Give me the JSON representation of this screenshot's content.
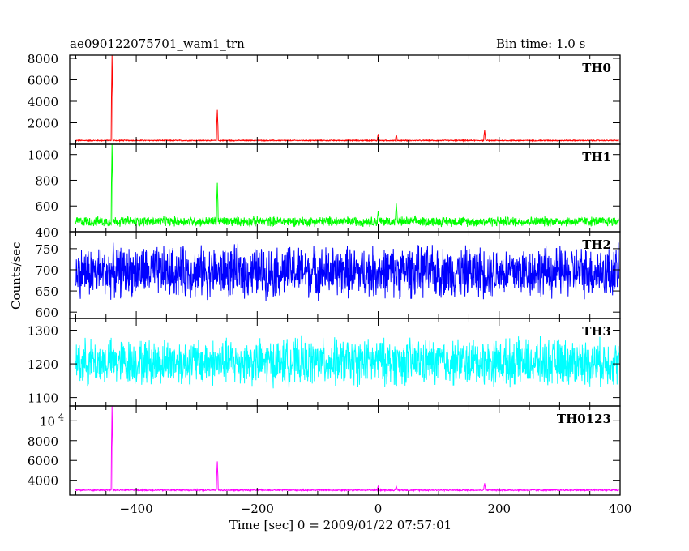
{
  "header": {
    "title": "ae090122075701_wam1_trn",
    "bin_time": "Bin time: 1.0 s"
  },
  "axes": {
    "xlabel": "Time [sec] 0 = 2009/01/22 07:57:01",
    "ylabel": "Counts/sec"
  },
  "chart_data": [
    {
      "type": "line",
      "name": "TH0",
      "color": "#ff0000",
      "xlim": [
        -510,
        400
      ],
      "ylim": [
        0,
        8300
      ],
      "yticks": [
        2000,
        4000,
        6000,
        8000
      ],
      "yticklabels": [
        "2000",
        "4000",
        "6000",
        "8000"
      ],
      "baseline": 350,
      "noise": 60,
      "peaks": [
        [
          -440,
          8300
        ],
        [
          -266,
          3200
        ],
        [
          0,
          950
        ],
        [
          30,
          900
        ],
        [
          176,
          1300
        ]
      ]
    },
    {
      "type": "line",
      "name": "TH1",
      "color": "#00ff00",
      "xlim": [
        -510,
        400
      ],
      "ylim": [
        400,
        1080
      ],
      "yticks": [
        400,
        600,
        800,
        1000
      ],
      "yticklabels": [
        "400",
        "600",
        "800",
        "1000"
      ],
      "baseline": 480,
      "noise": 45,
      "peaks": [
        [
          -440,
          1080
        ],
        [
          -266,
          780
        ],
        [
          30,
          620
        ],
        [
          0,
          560
        ]
      ]
    },
    {
      "type": "line",
      "name": "TH2",
      "color": "#0000ff",
      "xlim": [
        -510,
        400
      ],
      "ylim": [
        585,
        790
      ],
      "yticks": [
        600,
        650,
        700,
        750
      ],
      "yticklabels": [
        "600",
        "650",
        "700",
        "750"
      ],
      "baseline": 695,
      "noise": 70,
      "peaks": []
    },
    {
      "type": "line",
      "name": "TH3",
      "color": "#00ffff",
      "xlim": [
        -510,
        400
      ],
      "ylim": [
        1075,
        1335
      ],
      "yticks": [
        1100,
        1200,
        1300
      ],
      "yticklabels": [
        "1100",
        "1200",
        "1300"
      ],
      "baseline": 1205,
      "noise": 80,
      "peaks": []
    },
    {
      "type": "line",
      "name": "TH0123",
      "color": "#ff00ff",
      "xlim": [
        -510,
        400
      ],
      "ylim": [
        2500,
        11500
      ],
      "yticks": [
        4000,
        6000,
        8000,
        10000
      ],
      "yticklabels": [
        "4000",
        "6000",
        "8000",
        "10^4"
      ],
      "baseline": 3000,
      "noise": 80,
      "peaks": [
        [
          -440,
          11500
        ],
        [
          -266,
          5900
        ],
        [
          0,
          3400
        ],
        [
          30,
          3400
        ],
        [
          176,
          3700
        ]
      ]
    }
  ],
  "xaxis": {
    "ticks": [
      -400,
      -200,
      0,
      200,
      400
    ],
    "ticklabels": [
      "−400",
      "−200",
      "0",
      "200",
      "400"
    ]
  }
}
